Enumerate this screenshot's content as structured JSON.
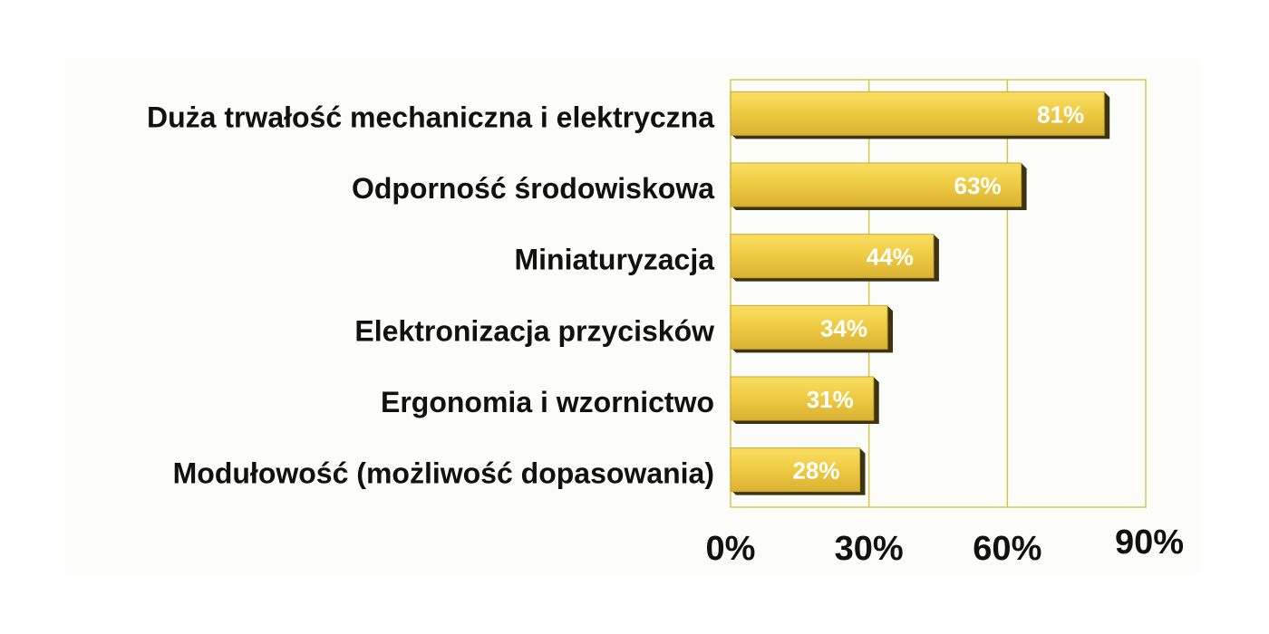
{
  "chart_data": {
    "type": "bar",
    "orientation": "horizontal",
    "categories": [
      "Duża trwałość mechaniczna i elektryczna",
      "Odporność środowiskowa",
      "Miniaturyzacja",
      "Elektronizacja przycisków",
      "Ergonomia i wzornictwo",
      "Modułowość (możliwość dopasowania)"
    ],
    "values": [
      81,
      63,
      44,
      34,
      31,
      28
    ],
    "data_labels": [
      "81%",
      "63%",
      "44%",
      "34%",
      "31%",
      "28%"
    ],
    "x_ticks": [
      "0%",
      "30%",
      "60%",
      "90%"
    ],
    "xlim": [
      0,
      90
    ],
    "grid": true,
    "legend": "none",
    "colors": {
      "bar_top": "#f7da5a",
      "bar_main": "#efc93c",
      "bar_side": "#caa42a",
      "bar_shadow": "#3c3410",
      "plot_border": "#d8c64a",
      "gridline": "#d8c64a",
      "text": "#111111",
      "data_label": "#ffffff"
    }
  }
}
